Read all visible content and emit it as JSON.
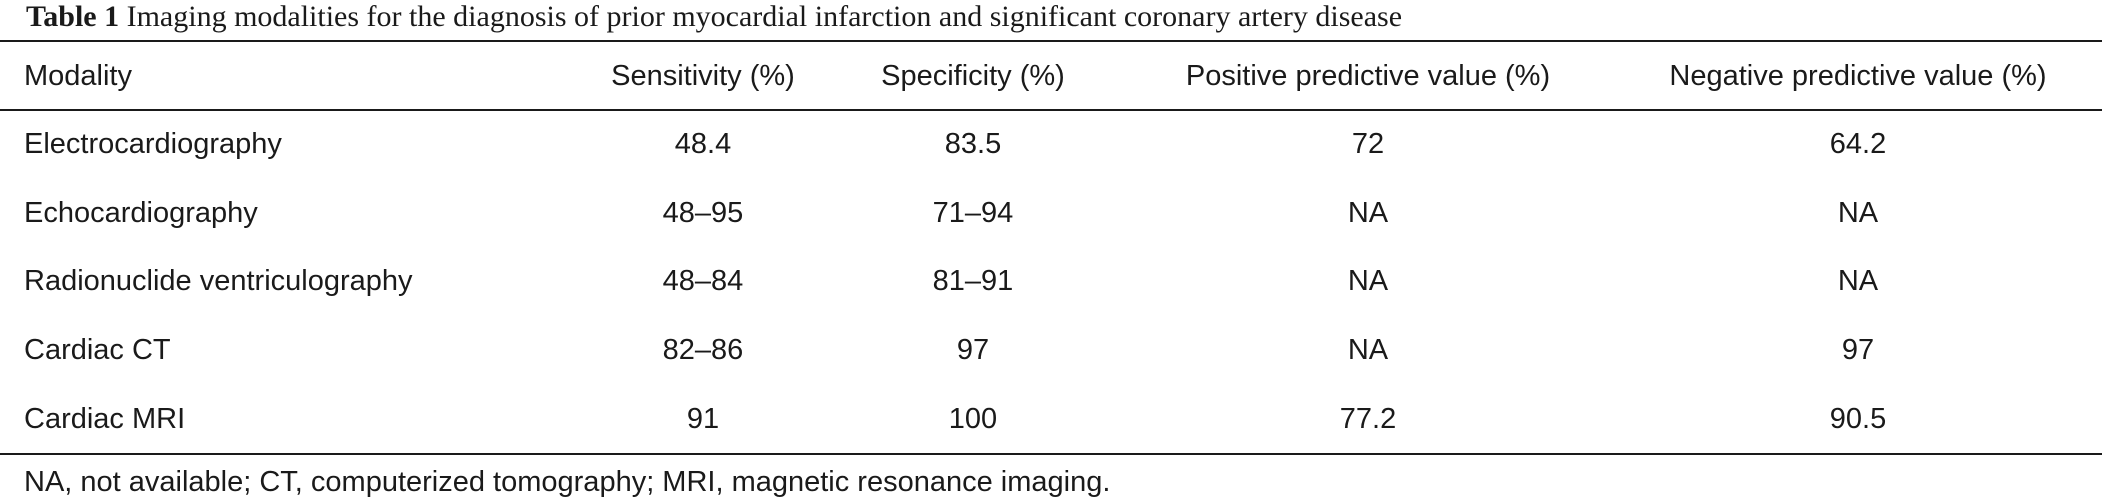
{
  "caption": {
    "label": "Table 1",
    "title": "Imaging modalities for the diagnosis of prior myocardial infarction and significant coronary artery disease"
  },
  "table": {
    "headers": [
      "Modality",
      "Sensitivity (%)",
      "Specificity (%)",
      "Positive predictive value (%)",
      "Negative predictive value (%)"
    ],
    "rows": [
      [
        "Electrocardiography",
        "48.4",
        "83.5",
        "72",
        "64.2"
      ],
      [
        "Echocardiography",
        "48–95",
        "71–94",
        "NA",
        "NA"
      ],
      [
        "Radionuclide ventriculography",
        "48–84",
        "81–91",
        "NA",
        "NA"
      ],
      [
        "Cardiac CT",
        "82–86",
        "97",
        "NA",
        "97"
      ],
      [
        "Cardiac MRI",
        "91",
        "100",
        "77.2",
        "90.5"
      ]
    ]
  },
  "footnote": "NA, not available; CT, computerized tomography; MRI, magnetic resonance imaging."
}
